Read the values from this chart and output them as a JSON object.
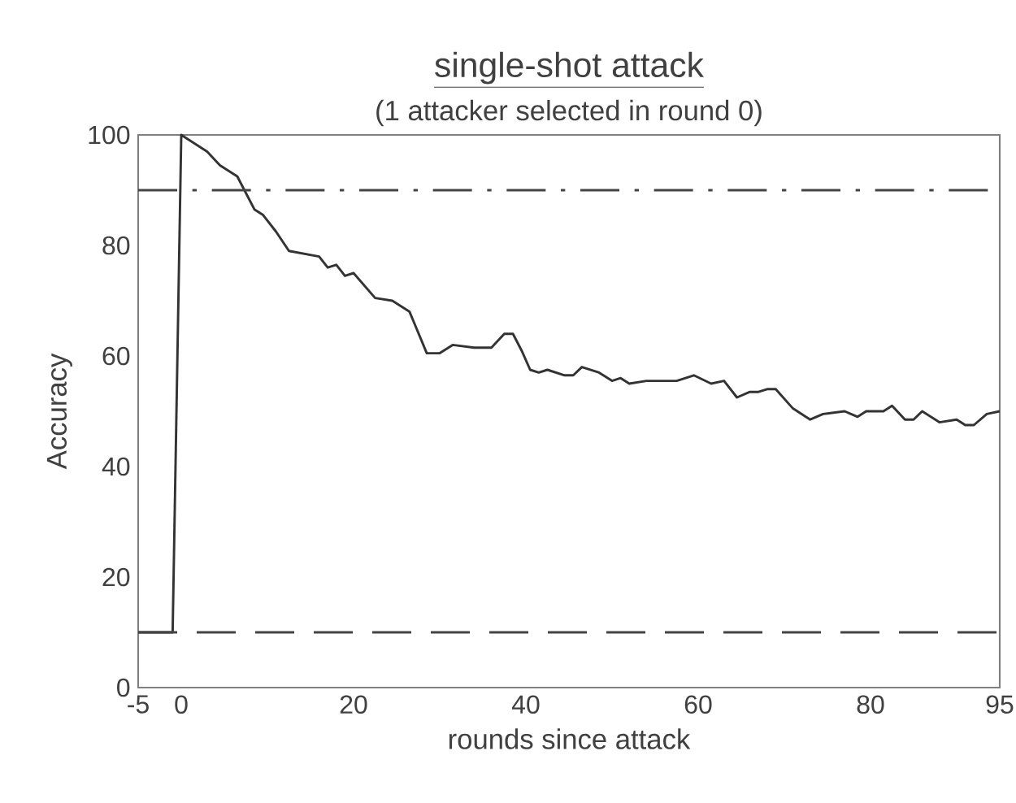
{
  "chart_data": {
    "type": "line",
    "title": "single-shot attack",
    "subtitle": "(1 attacker selected in round 0)",
    "xlabel": "rounds since attack",
    "ylabel": "Accuracy",
    "xlim": [
      -5,
      95
    ],
    "xticks": [
      -5,
      0,
      20,
      40,
      60,
      80,
      95
    ],
    "ylim": [
      0,
      100
    ],
    "yticks": [
      0,
      20,
      40,
      60,
      80,
      100
    ],
    "grid": false,
    "legend": false,
    "marker": "none",
    "line_style": "solid",
    "x": [
      -5,
      -1,
      0,
      3,
      4.5,
      6.5,
      8.5,
      9.5,
      11,
      12.5,
      16,
      17,
      18,
      19,
      20,
      22.5,
      24.5,
      26.5,
      28.5,
      30,
      31.5,
      34,
      36,
      37.5,
      38.5,
      39.5,
      40.5,
      41.5,
      42.5,
      44.5,
      45.5,
      46.5,
      48.5,
      50,
      51,
      52,
      54,
      57.5,
      59.5,
      61.5,
      63,
      64.5,
      66,
      67,
      68,
      69,
      71,
      73,
      74.5,
      77,
      78.5,
      79.5,
      81.5,
      82.5,
      84,
      85,
      86,
      88,
      90,
      91,
      92,
      93.5,
      95
    ],
    "series": [
      {
        "color": "#333333",
        "values": [
          10,
          10,
          100,
          97,
          94.5,
          92.5,
          86.5,
          85.5,
          82.5,
          79,
          78,
          76,
          76.5,
          74.5,
          75,
          70.5,
          70,
          68,
          60.5,
          60.5,
          62,
          61.5,
          61.5,
          64,
          64,
          61,
          57.5,
          57,
          57.5,
          56.5,
          56.5,
          58,
          57,
          55.5,
          56,
          55,
          55.5,
          55.5,
          56.5,
          55,
          55.5,
          52.5,
          53.5,
          53.5,
          54,
          54,
          50.5,
          48.5,
          49.5,
          50,
          49,
          50,
          50,
          51,
          48.5,
          48.5,
          50,
          48,
          48.5,
          47.5,
          47.5,
          49.5,
          50
        ]
      }
    ],
    "ref_lines": [
      {
        "axis": "y",
        "value": 90,
        "color": "#444444",
        "line_style": "dashdot"
      },
      {
        "axis": "y",
        "value": 10,
        "color": "#444444",
        "line_style": "dashed"
      }
    ]
  }
}
